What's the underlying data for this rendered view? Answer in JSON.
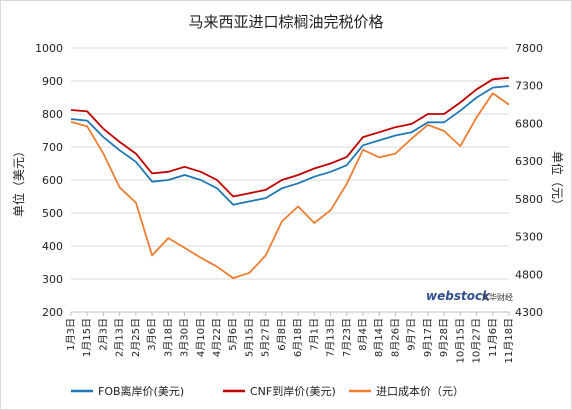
{
  "chart_data": {
    "type": "line",
    "title": "马来西亚进口棕榈油完税价格",
    "ylabel_left": "单位（美元）",
    "ylabel_right": "单位（元）",
    "ylim_left": [
      200,
      1000
    ],
    "ylim_right": [
      4300,
      7800
    ],
    "yticks_left": [
      "200",
      "300",
      "400",
      "500",
      "600",
      "700",
      "800",
      "900",
      "1000"
    ],
    "yticks_right": [
      "4300",
      "4800",
      "5300",
      "5800",
      "6300",
      "6800",
      "7300",
      "7800"
    ],
    "categories": [
      "1月3日",
      "1月15日",
      "2月3日",
      "2月13日",
      "2月25日",
      "3月6日",
      "3月18日",
      "3月30日",
      "4月10日",
      "4月22日",
      "5月6日",
      "5月15日",
      "5月27日",
      "6月8日",
      "6月18日",
      "7月1日",
      "7月13日",
      "7月23日",
      "8月4日",
      "8月14日",
      "8月26日",
      "9月7日",
      "9月17日",
      "9月28日",
      "10月15日",
      "10月27日",
      "11月6日",
      "11月18日"
    ],
    "series": [
      {
        "name": "FOB离岸价(美元)",
        "axis": "left",
        "color": "#1f77b4",
        "values": [
          785,
          780,
          730,
          690,
          655,
          595,
          600,
          615,
          600,
          575,
          525,
          535,
          545,
          575,
          590,
          610,
          625,
          645,
          705,
          720,
          735,
          745,
          775,
          775,
          810,
          850,
          880,
          885
        ]
      },
      {
        "name": "CNF到岸价(美元)",
        "axis": "left",
        "color": "#c00000",
        "values": [
          812,
          808,
          755,
          715,
          680,
          620,
          625,
          640,
          625,
          600,
          550,
          560,
          570,
          600,
          615,
          635,
          650,
          670,
          730,
          745,
          760,
          770,
          800,
          800,
          835,
          875,
          905,
          910
        ]
      },
      {
        "name": "进口成本价（元）",
        "axis": "right",
        "color": "#ed7d31",
        "values": [
          6820,
          6760,
          6400,
          5950,
          5750,
          5050,
          5280,
          5150,
          5020,
          4900,
          4750,
          4820,
          5050,
          5500,
          5700,
          5480,
          5650,
          6000,
          6450,
          6350,
          6400,
          6600,
          6780,
          6700,
          6500,
          6880,
          7200,
          7050
        ]
      }
    ],
    "grid": true,
    "legend": "bottom"
  },
  "watermark": {
    "main": "webstock",
    "cn": "文华财经"
  }
}
